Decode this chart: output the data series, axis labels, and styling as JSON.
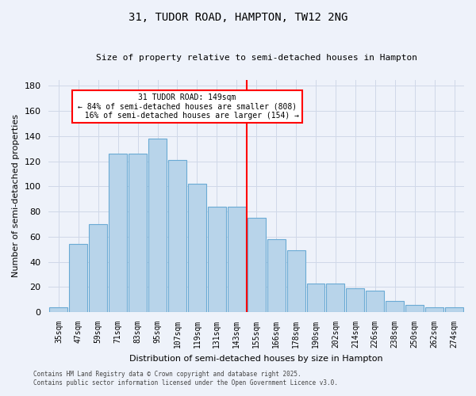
{
  "title": "31, TUDOR ROAD, HAMPTON, TW12 2NG",
  "subtitle": "Size of property relative to semi-detached houses in Hampton",
  "xlabel": "Distribution of semi-detached houses by size in Hampton",
  "ylabel": "Number of semi-detached properties",
  "footnote1": "Contains HM Land Registry data © Crown copyright and database right 2025.",
  "footnote2": "Contains public sector information licensed under the Open Government Licence v3.0.",
  "categories": [
    "35sqm",
    "47sqm",
    "59sqm",
    "71sqm",
    "83sqm",
    "95sqm",
    "107sqm",
    "119sqm",
    "131sqm",
    "143sqm",
    "155sqm",
    "166sqm",
    "178sqm",
    "190sqm",
    "202sqm",
    "214sqm",
    "226sqm",
    "238sqm",
    "250sqm",
    "262sqm",
    "274sqm"
  ],
  "values": [
    4,
    54,
    70,
    126,
    126,
    138,
    121,
    102,
    84,
    84,
    75,
    58,
    49,
    23,
    23,
    19,
    17,
    9,
    6,
    4,
    4
  ],
  "bar_color": "#b8d4ea",
  "bar_edge_color": "#6aaad4",
  "vline_color": "red",
  "pct_smaller": 84,
  "pct_larger": 16,
  "count_smaller": 808,
  "count_larger": 154,
  "property_size": 149,
  "ylim": [
    0,
    185
  ],
  "grid_color": "#d0d8e8",
  "bg_color": "#eef2fa"
}
